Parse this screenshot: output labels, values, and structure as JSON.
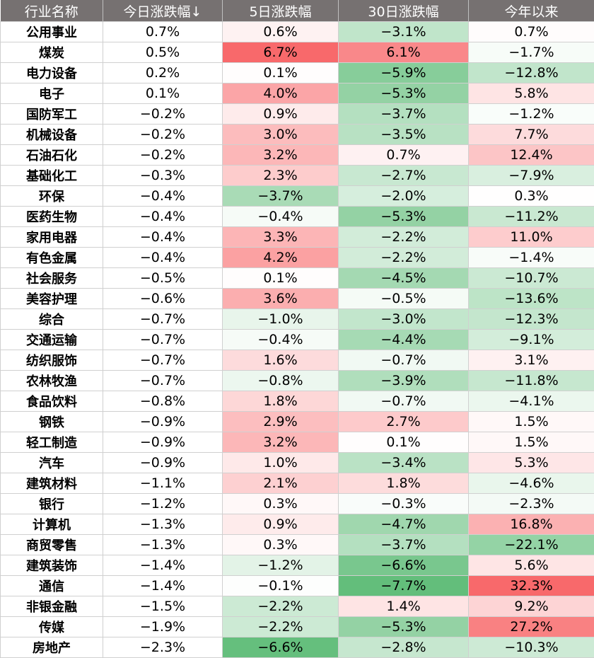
{
  "chart_data": {
    "type": "table",
    "columns": [
      "行业名称",
      "今日涨跌幅↓",
      "5日涨跌幅",
      "30日涨跌幅",
      "今年以来"
    ],
    "rows": [
      {
        "name": "公用事业",
        "values": [
          0.7,
          0.6,
          -3.1,
          0.7
        ]
      },
      {
        "name": "煤炭",
        "values": [
          0.5,
          6.7,
          6.1,
          -1.7
        ]
      },
      {
        "name": "电力设备",
        "values": [
          0.2,
          0.1,
          -5.9,
          -12.8
        ]
      },
      {
        "name": "电子",
        "values": [
          0.1,
          4.0,
          -5.3,
          5.8
        ]
      },
      {
        "name": "国防军工",
        "values": [
          -0.2,
          0.9,
          -3.7,
          -1.2
        ]
      },
      {
        "name": "机械设备",
        "values": [
          -0.2,
          3.0,
          -3.5,
          7.7
        ]
      },
      {
        "name": "石油石化",
        "values": [
          -0.2,
          3.2,
          0.7,
          12.4
        ]
      },
      {
        "name": "基础化工",
        "values": [
          -0.3,
          2.3,
          -2.7,
          -7.9
        ]
      },
      {
        "name": "环保",
        "values": [
          -0.4,
          -3.7,
          -2.0,
          0.3
        ]
      },
      {
        "name": "医药生物",
        "values": [
          -0.4,
          -0.4,
          -5.3,
          -11.2
        ]
      },
      {
        "name": "家用电器",
        "values": [
          -0.4,
          3.3,
          -2.2,
          11.0
        ]
      },
      {
        "name": "有色金属",
        "values": [
          -0.4,
          4.2,
          -2.2,
          -1.4
        ]
      },
      {
        "name": "社会服务",
        "values": [
          -0.5,
          0.1,
          -4.5,
          -10.7
        ]
      },
      {
        "name": "美容护理",
        "values": [
          -0.6,
          3.6,
          -0.5,
          -13.6
        ]
      },
      {
        "name": "综合",
        "values": [
          -0.7,
          -1.0,
          -3.0,
          -12.3
        ]
      },
      {
        "name": "交通运输",
        "values": [
          -0.7,
          -0.4,
          -4.4,
          -9.1
        ]
      },
      {
        "name": "纺织服饰",
        "values": [
          -0.7,
          1.6,
          -0.7,
          3.1
        ]
      },
      {
        "name": "农林牧渔",
        "values": [
          -0.7,
          -0.8,
          -3.9,
          -11.8
        ]
      },
      {
        "name": "食品饮料",
        "values": [
          -0.8,
          1.8,
          -0.7,
          -4.1
        ]
      },
      {
        "name": "钢铁",
        "values": [
          -0.9,
          2.9,
          2.7,
          1.5
        ]
      },
      {
        "name": "轻工制造",
        "values": [
          -0.9,
          3.2,
          0.1,
          1.5
        ]
      },
      {
        "name": "汽车",
        "values": [
          -0.9,
          1.0,
          -3.4,
          5.3
        ]
      },
      {
        "name": "建筑材料",
        "values": [
          -1.1,
          2.1,
          1.8,
          -4.6
        ]
      },
      {
        "name": "银行",
        "values": [
          -1.2,
          0.3,
          -0.3,
          -2.3
        ]
      },
      {
        "name": "计算机",
        "values": [
          -1.3,
          0.9,
          -4.7,
          16.8
        ]
      },
      {
        "name": "商贸零售",
        "values": [
          -1.3,
          0.3,
          -3.7,
          -22.1
        ]
      },
      {
        "name": "建筑装饰",
        "values": [
          -1.4,
          -1.2,
          -6.6,
          5.6
        ]
      },
      {
        "name": "通信",
        "values": [
          -1.4,
          -0.1,
          -7.7,
          32.3
        ]
      },
      {
        "name": "非银金融",
        "values": [
          -1.5,
          -2.2,
          1.4,
          9.2
        ]
      },
      {
        "name": "传媒",
        "values": [
          -1.9,
          -2.2,
          -5.3,
          27.2
        ]
      },
      {
        "name": "房地产",
        "values": [
          -2.3,
          -6.6,
          -2.8,
          -10.3
        ]
      }
    ],
    "colors": {
      "header_bg": "#767171",
      "header_text": "#ffffff",
      "positive": "#f8696b",
      "negative": "#63be7b",
      "neutral": "#ffffff"
    }
  }
}
